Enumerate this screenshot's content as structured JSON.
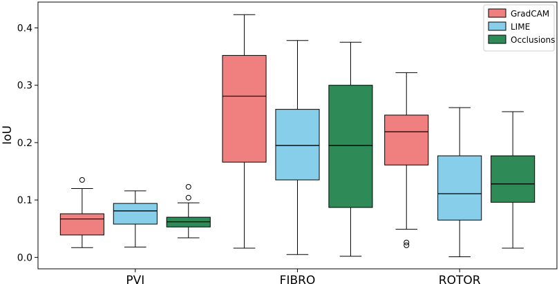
{
  "chart_data": {
    "type": "box",
    "title": "",
    "xlabel": "",
    "ylabel": "IoU",
    "ylim": [
      -0.02,
      0.445
    ],
    "yticks": [
      "0.0",
      "0.1",
      "0.2",
      "0.3",
      "0.4"
    ],
    "categories": [
      "PVI",
      "FIBRO",
      "ROTOR"
    ],
    "grid": false,
    "legend_position": "top-right",
    "series": [
      {
        "name": "GradCAM",
        "color": "#F08080",
        "boxes": [
          {
            "whislo": 0.017,
            "q1": 0.039,
            "med": 0.067,
            "q3": 0.076,
            "whishi": 0.12,
            "fliers": [
              0.135
            ]
          },
          {
            "whislo": 0.016,
            "q1": 0.166,
            "med": 0.281,
            "q3": 0.352,
            "whishi": 0.423,
            "fliers": []
          },
          {
            "whislo": 0.049,
            "q1": 0.161,
            "med": 0.219,
            "q3": 0.248,
            "whishi": 0.322,
            "fliers": [
              0.026,
              0.021
            ]
          }
        ]
      },
      {
        "name": "LIME",
        "color": "#87CEEB",
        "boxes": [
          {
            "whislo": 0.018,
            "q1": 0.058,
            "med": 0.081,
            "q3": 0.094,
            "whishi": 0.116,
            "fliers": []
          },
          {
            "whislo": 0.005,
            "q1": 0.135,
            "med": 0.195,
            "q3": 0.258,
            "whishi": 0.378,
            "fliers": []
          },
          {
            "whislo": 0.001,
            "q1": 0.065,
            "med": 0.111,
            "q3": 0.177,
            "whishi": 0.261,
            "fliers": []
          }
        ]
      },
      {
        "name": "Occlusions",
        "color": "#2E8B57",
        "boxes": [
          {
            "whislo": 0.034,
            "q1": 0.053,
            "med": 0.062,
            "q3": 0.07,
            "whishi": 0.095,
            "fliers": [
              0.104,
              0.123
            ]
          },
          {
            "whislo": 0.002,
            "q1": 0.087,
            "med": 0.195,
            "q3": 0.3,
            "whishi": 0.375,
            "fliers": []
          },
          {
            "whislo": 0.016,
            "q1": 0.096,
            "med": 0.128,
            "q3": 0.177,
            "whishi": 0.254,
            "fliers": []
          }
        ]
      }
    ]
  }
}
